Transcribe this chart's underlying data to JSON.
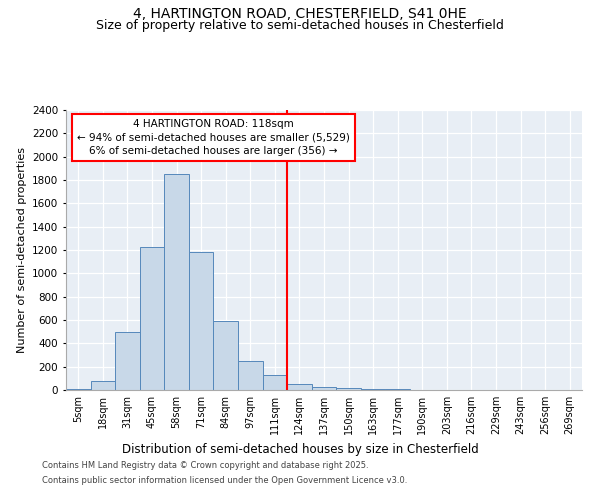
{
  "title1": "4, HARTINGTON ROAD, CHESTERFIELD, S41 0HE",
  "title2": "Size of property relative to semi-detached houses in Chesterfield",
  "xlabel": "Distribution of semi-detached houses by size in Chesterfield",
  "ylabel": "Number of semi-detached properties",
  "bin_labels": [
    "5sqm",
    "18sqm",
    "31sqm",
    "45sqm",
    "58sqm",
    "71sqm",
    "84sqm",
    "97sqm",
    "111sqm",
    "124sqm",
    "137sqm",
    "150sqm",
    "163sqm",
    "177sqm",
    "190sqm",
    "203sqm",
    "216sqm",
    "229sqm",
    "243sqm",
    "256sqm",
    "269sqm"
  ],
  "bar_heights": [
    10,
    75,
    500,
    1230,
    1850,
    1180,
    590,
    245,
    125,
    50,
    30,
    20,
    10,
    5,
    0,
    0,
    0,
    0,
    0,
    0,
    0
  ],
  "bar_color": "#c8d8e8",
  "bar_edge_color": "#5588bb",
  "vline_color": "red",
  "property_size": "118sqm",
  "property_name": "4 HARTINGTON ROAD",
  "pct_smaller": "94%",
  "n_smaller": "5,529",
  "pct_larger": "6%",
  "n_larger": "356",
  "ylim": [
    0,
    2400
  ],
  "yticks": [
    0,
    200,
    400,
    600,
    800,
    1000,
    1200,
    1400,
    1600,
    1800,
    2000,
    2200,
    2400
  ],
  "background_color": "#e8eef5",
  "grid_color": "#ffffff",
  "footer1": "Contains HM Land Registry data © Crown copyright and database right 2025.",
  "footer2": "Contains public sector information licensed under the Open Government Licence v3.0.",
  "title1_fontsize": 10,
  "title2_fontsize": 9,
  "xlabel_fontsize": 8.5,
  "ylabel_fontsize": 8
}
